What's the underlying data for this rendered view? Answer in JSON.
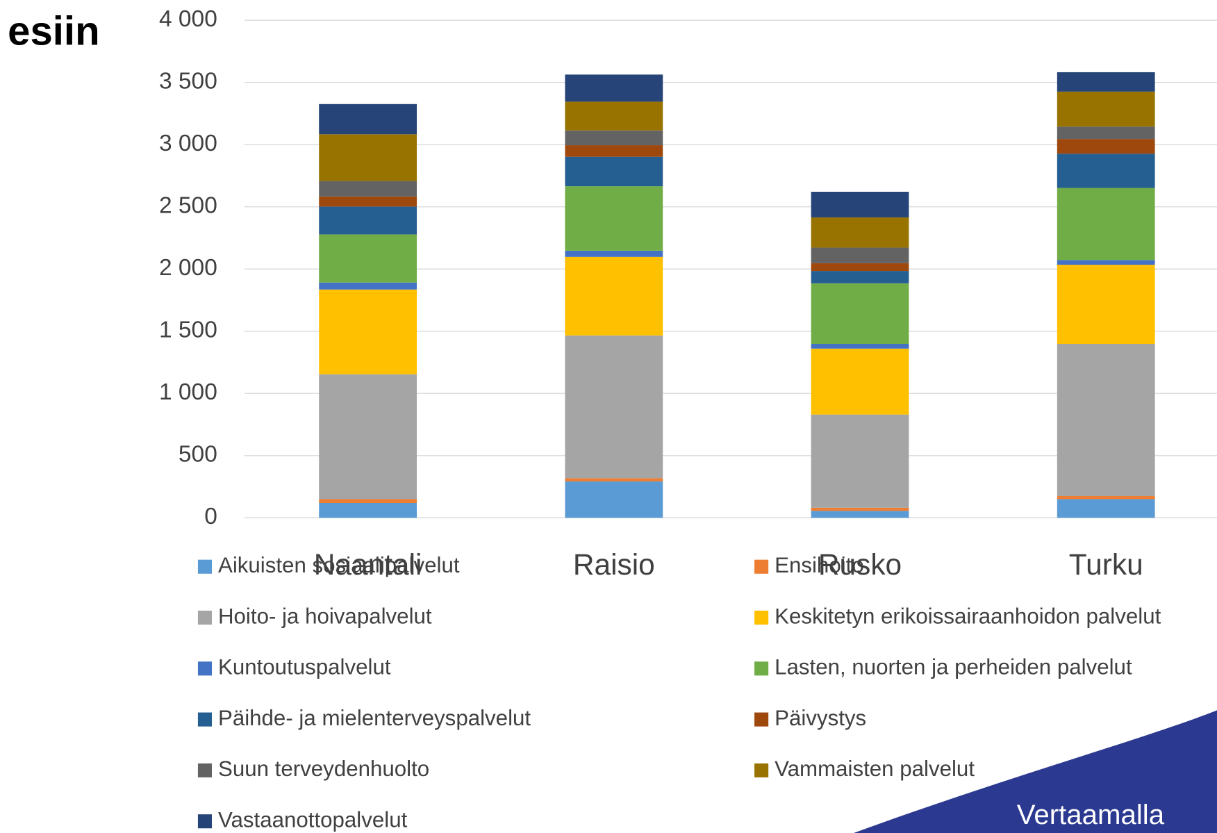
{
  "title": "esiin",
  "footer": "Vertaamalla",
  "chart_data": {
    "type": "stacked_bar",
    "categories": [
      "Naantali",
      "Raisio",
      "Rusko",
      "Turku"
    ],
    "ylim": [
      0,
      4000
    ],
    "yticks": [
      0,
      500,
      {
        "value": 1000,
        "label": "1 000"
      },
      {
        "value": 1500,
        "label": "1 500"
      },
      {
        "value": 2000,
        "label": "2 000"
      },
      {
        "value": 2500,
        "label": "2 500"
      },
      {
        "value": 3000,
        "label": "3 000"
      },
      {
        "value": 3500,
        "label": "3 500"
      },
      {
        "value": 4000,
        "label": "4 000"
      }
    ],
    "grid": true,
    "legend": "bottom",
    "series": [
      {
        "name": "Aikuisten sosiaalipalvelut",
        "color": "#5b9bd5",
        "values": [
          119,
          293,
          56,
          150
        ]
      },
      {
        "name": "Ensihoito",
        "color": "#ed7d31",
        "values": [
          31,
          25,
          25,
          25
        ]
      },
      {
        "name": "Hoito- ja hoivapalvelut",
        "color": "#a5a5a5",
        "values": [
          1004,
          1148,
          749,
          1223
        ]
      },
      {
        "name": "Keskitetyn erikoissairaanhoidon palvelut",
        "color": "#ffc000",
        "values": [
          681,
          631,
          530,
          636
        ]
      },
      {
        "name": "Kuntoutuspalvelut",
        "color": "#4472c4",
        "values": [
          56,
          50,
          38,
          38
        ]
      },
      {
        "name": "Lasten, nuorten ja perheiden palvelut",
        "color": "#70ad47",
        "values": [
          387,
          518,
          487,
          580
        ]
      },
      {
        "name": "Päihde- ja mielenterveyspalvelut",
        "color": "#255e91",
        "values": [
          224,
          237,
          99,
          275
        ]
      },
      {
        "name": "Päivystys",
        "color": "#9e480e",
        "values": [
          81,
          93,
          63,
          118
        ]
      },
      {
        "name": "Suun terveydenhuolto",
        "color": "#636363",
        "values": [
          125,
          119,
          125,
          100
        ]
      },
      {
        "name": "Vammaisten palvelut",
        "color": "#997300",
        "values": [
          375,
          231,
          243,
          281
        ]
      },
      {
        "name": "Vastaanottopalvelut",
        "color": "#264478",
        "values": [
          243,
          218,
          206,
          156
        ]
      }
    ]
  }
}
